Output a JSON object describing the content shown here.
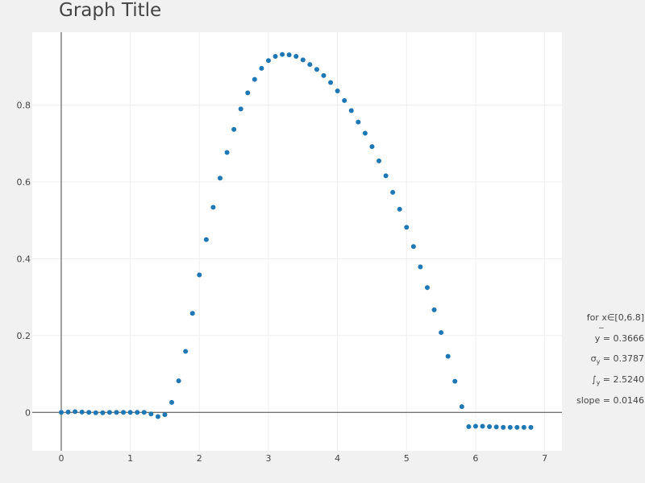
{
  "chart_data": {
    "type": "scatter",
    "title": "Graph Title",
    "xlabel": "",
    "ylabel": "",
    "xlim": [
      -0.42,
      7.25
    ],
    "ylim": [
      -0.1,
      0.99
    ],
    "grid": true,
    "x_ticks": [
      0,
      1,
      2,
      3,
      4,
      5,
      6,
      7
    ],
    "y_ticks": [
      0,
      0.2,
      0.4,
      0.6,
      0.8
    ],
    "x_tick_labels": [
      "0",
      "1",
      "2",
      "3",
      "4",
      "5",
      "6",
      "7"
    ],
    "y_tick_labels": [
      "0",
      "0.2",
      "0.4",
      "0.6",
      "0.8"
    ],
    "marker_color": "#1f77b4",
    "series": [
      {
        "x": [
          0,
          0.1,
          0.2,
          0.3,
          0.4,
          0.5,
          0.6,
          0.7,
          0.8,
          0.9,
          1.0,
          1.1,
          1.2,
          1.3,
          1.4,
          1.5,
          1.6,
          1.7,
          1.8,
          1.9,
          2.0,
          2.1,
          2.2,
          2.3,
          2.4,
          2.5,
          2.6,
          2.7,
          2.8,
          2.9,
          3.0,
          3.1,
          3.2,
          3.3,
          3.4,
          3.5,
          3.6,
          3.7,
          3.8,
          3.9,
          4.0,
          4.1,
          4.2,
          4.3,
          4.4,
          4.5,
          4.6,
          4.7,
          4.8,
          4.9,
          5.0,
          5.1,
          5.2,
          5.3,
          5.4,
          5.5,
          5.6,
          5.7,
          5.8,
          5.9,
          6.0,
          6.1,
          6.2,
          6.3,
          6.4,
          6.5,
          6.6,
          6.7,
          6.8
        ],
        "y": [
          0,
          0.001,
          0.002,
          0.001,
          0,
          -0.001,
          -0.001,
          0,
          0,
          0,
          0,
          0,
          0,
          -0.004,
          -0.011,
          -0.006,
          0.026,
          0.082,
          0.159,
          0.258,
          0.358,
          0.45,
          0.534,
          0.61,
          0.677,
          0.737,
          0.79,
          0.832,
          0.867,
          0.896,
          0.916,
          0.927,
          0.932,
          0.931,
          0.927,
          0.918,
          0.906,
          0.893,
          0.877,
          0.859,
          0.837,
          0.812,
          0.786,
          0.756,
          0.727,
          0.692,
          0.655,
          0.616,
          0.573,
          0.529,
          0.482,
          0.432,
          0.379,
          0.325,
          0.267,
          0.208,
          0.146,
          0.081,
          0.015,
          -0.037,
          -0.036,
          -0.036,
          -0.037,
          -0.038,
          -0.039,
          -0.039,
          -0.039,
          -0.039,
          -0.039
        ]
      }
    ],
    "stats": {
      "range_label": "for x∈[0,6.8]",
      "mean_label": "y = 0.3666",
      "mean_bar": "‾",
      "sigma_label": "σ",
      "sigma_sub": "y",
      "sigma_value": " = 0.3787",
      "integral_label": "∫",
      "integral_sub": "y",
      "integral_value": " = 2.5240",
      "slope_label": "slope = 0.0146"
    }
  }
}
